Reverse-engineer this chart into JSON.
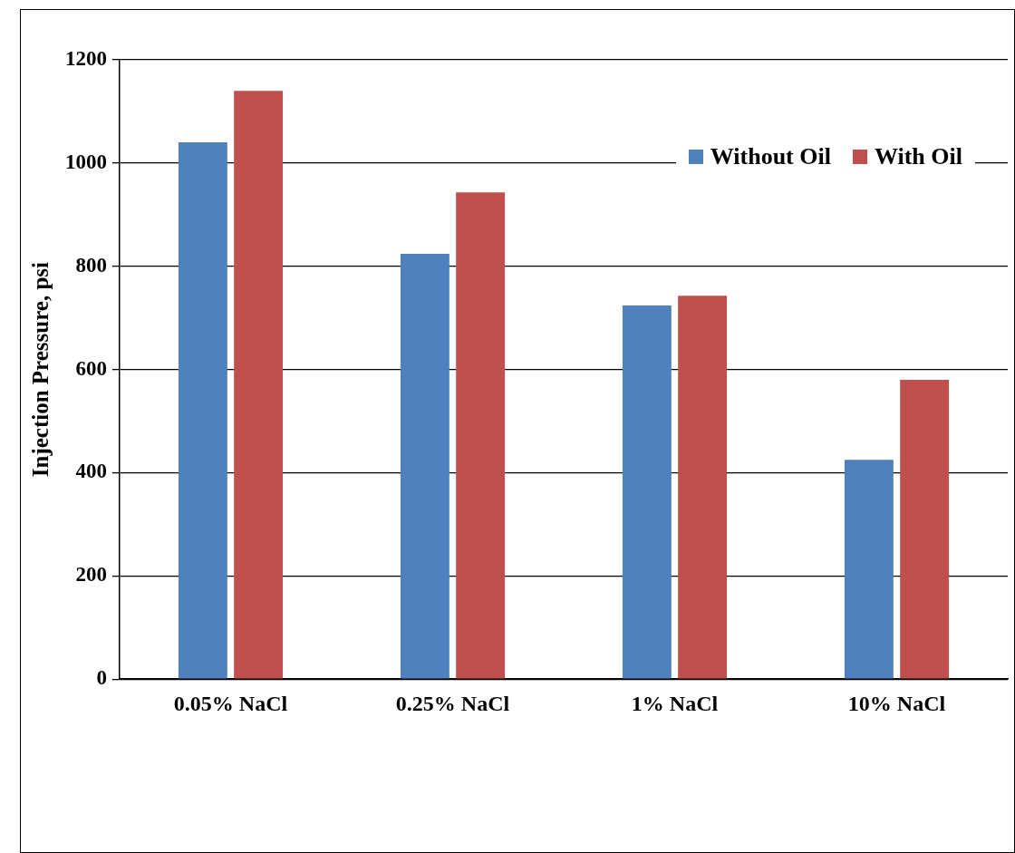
{
  "chart_data": {
    "type": "bar",
    "ylabel": "Injection Pressure, psi",
    "categories": [
      "0.05% NaCl",
      "0.25% NaCl",
      "1% NaCl",
      "10% NaCl"
    ],
    "series": [
      {
        "name": "Without Oil",
        "color": "#4f81bd",
        "values": [
          1040,
          824,
          724,
          425
        ]
      },
      {
        "name": "With Oil",
        "color": "#c0504d",
        "values": [
          1140,
          943,
          743,
          580
        ]
      }
    ],
    "ylim": [
      0,
      1200
    ],
    "yticks": [
      0,
      200,
      400,
      600,
      800,
      1000,
      1200
    ],
    "grid": "y",
    "legend": "top right"
  }
}
